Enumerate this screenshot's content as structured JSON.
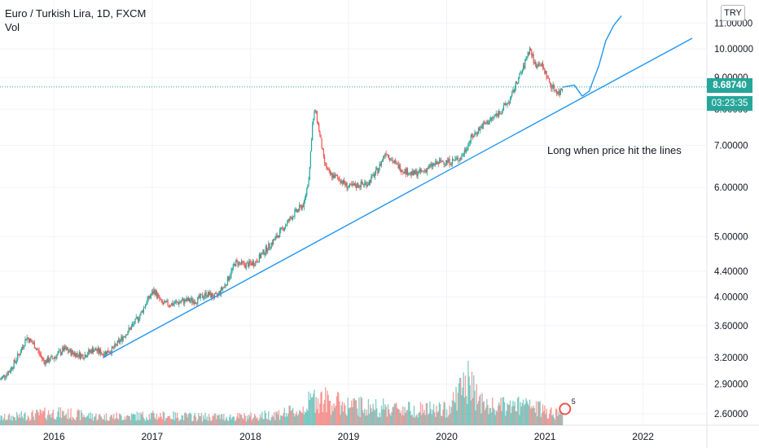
{
  "header": {
    "title": "Euro / Turkish Lira, 1D, FXCM",
    "indicator": "Vol"
  },
  "currency_button": "TRY",
  "annotation": "Long when price hit the lines",
  "last_price": "8.68740",
  "countdown": "03:23:35",
  "event_badge": "5",
  "colors": {
    "up": "#26a69a",
    "down": "#ef5350",
    "trendline": "#2196f3",
    "price_line": "#26a69a",
    "axis_text": "#131722"
  },
  "chart_data": {
    "type": "candlestick",
    "log_scale": true,
    "ylim": [
      2.5,
      11.3
    ],
    "y_ticks": [
      {
        "label": "11.00000",
        "value": 11.0
      },
      {
        "label": "10.00000",
        "value": 10.0
      },
      {
        "label": "9.00000",
        "value": 9.0
      },
      {
        "label": "8.00000",
        "value": 8.0
      },
      {
        "label": "7.00000",
        "value": 7.0
      },
      {
        "label": "6.00000",
        "value": 6.0
      },
      {
        "label": "5.00000",
        "value": 5.0
      },
      {
        "label": "4.40000",
        "value": 4.4
      },
      {
        "label": "4.00000",
        "value": 4.0
      },
      {
        "label": "3.60000",
        "value": 3.6
      },
      {
        "label": "3.20000",
        "value": 3.2
      },
      {
        "label": "2.90000",
        "value": 2.9
      },
      {
        "label": "2.60000",
        "value": 2.6
      }
    ],
    "x_ticks": [
      "2016",
      "2017",
      "2018",
      "2019",
      "2020",
      "2021",
      "2022"
    ],
    "xlim": [
      2015.45,
      2022.65
    ],
    "price_path": [
      [
        2015.45,
        2.95
      ],
      [
        2015.55,
        3.05
      ],
      [
        2015.65,
        3.25
      ],
      [
        2015.72,
        3.45
      ],
      [
        2015.8,
        3.35
      ],
      [
        2015.9,
        3.15
      ],
      [
        2016.0,
        3.2
      ],
      [
        2016.1,
        3.3
      ],
      [
        2016.2,
        3.25
      ],
      [
        2016.3,
        3.22
      ],
      [
        2016.4,
        3.3
      ],
      [
        2016.5,
        3.25
      ],
      [
        2016.6,
        3.3
      ],
      [
        2016.7,
        3.45
      ],
      [
        2016.8,
        3.6
      ],
      [
        2016.88,
        3.75
      ],
      [
        2016.95,
        3.95
      ],
      [
        2017.02,
        4.1
      ],
      [
        2017.1,
        3.9
      ],
      [
        2017.2,
        3.9
      ],
      [
        2017.35,
        3.95
      ],
      [
        2017.45,
        3.95
      ],
      [
        2017.55,
        4.05
      ],
      [
        2017.65,
        4.0
      ],
      [
        2017.75,
        4.2
      ],
      [
        2017.85,
        4.55
      ],
      [
        2017.95,
        4.5
      ],
      [
        2018.05,
        4.55
      ],
      [
        2018.15,
        4.75
      ],
      [
        2018.25,
        4.95
      ],
      [
        2018.35,
        5.2
      ],
      [
        2018.45,
        5.45
      ],
      [
        2018.55,
        5.65
      ],
      [
        2018.6,
        6.3
      ],
      [
        2018.63,
        7.5
      ],
      [
        2018.66,
        8.0
      ],
      [
        2018.7,
        7.4
      ],
      [
        2018.75,
        6.6
      ],
      [
        2018.8,
        6.3
      ],
      [
        2018.9,
        6.2
      ],
      [
        2019.0,
        6.0
      ],
      [
        2019.1,
        6.05
      ],
      [
        2019.2,
        6.1
      ],
      [
        2019.3,
        6.4
      ],
      [
        2019.38,
        6.85
      ],
      [
        2019.45,
        6.6
      ],
      [
        2019.55,
        6.4
      ],
      [
        2019.65,
        6.3
      ],
      [
        2019.75,
        6.35
      ],
      [
        2019.85,
        6.5
      ],
      [
        2019.95,
        6.6
      ],
      [
        2020.05,
        6.6
      ],
      [
        2020.15,
        6.7
      ],
      [
        2020.25,
        7.2
      ],
      [
        2020.35,
        7.5
      ],
      [
        2020.45,
        7.7
      ],
      [
        2020.55,
        7.95
      ],
      [
        2020.65,
        8.3
      ],
      [
        2020.72,
        8.9
      ],
      [
        2020.78,
        9.3
      ],
      [
        2020.82,
        9.8
      ],
      [
        2020.85,
        10.0
      ],
      [
        2020.9,
        9.4
      ],
      [
        2020.95,
        9.5
      ],
      [
        2021.0,
        9.2
      ],
      [
        2021.05,
        8.8
      ],
      [
        2021.1,
        8.6
      ],
      [
        2021.15,
        8.5
      ],
      [
        2021.18,
        8.68
      ]
    ],
    "volume_profile": [
      [
        2015.45,
        0.25
      ],
      [
        2016.0,
        0.45
      ],
      [
        2016.5,
        0.3
      ],
      [
        2017.0,
        0.35
      ],
      [
        2017.5,
        0.3
      ],
      [
        2018.0,
        0.3
      ],
      [
        2018.5,
        0.5
      ],
      [
        2018.66,
        1.0
      ],
      [
        2019.0,
        0.7
      ],
      [
        2019.5,
        0.6
      ],
      [
        2020.0,
        0.55
      ],
      [
        2020.2,
        1.6
      ],
      [
        2020.4,
        0.65
      ],
      [
        2020.8,
        0.7
      ],
      [
        2021.18,
        0.4
      ]
    ],
    "trendline": {
      "from": [
        2016.5,
        3.2
      ],
      "to": [
        2022.5,
        10.4
      ]
    },
    "projection": [
      [
        2021.18,
        8.68
      ],
      [
        2021.3,
        8.75
      ],
      [
        2021.38,
        8.4
      ],
      [
        2021.45,
        8.55
      ],
      [
        2021.55,
        9.4
      ],
      [
        2021.62,
        10.3
      ],
      [
        2021.7,
        10.9
      ],
      [
        2021.78,
        11.3
      ]
    ]
  }
}
